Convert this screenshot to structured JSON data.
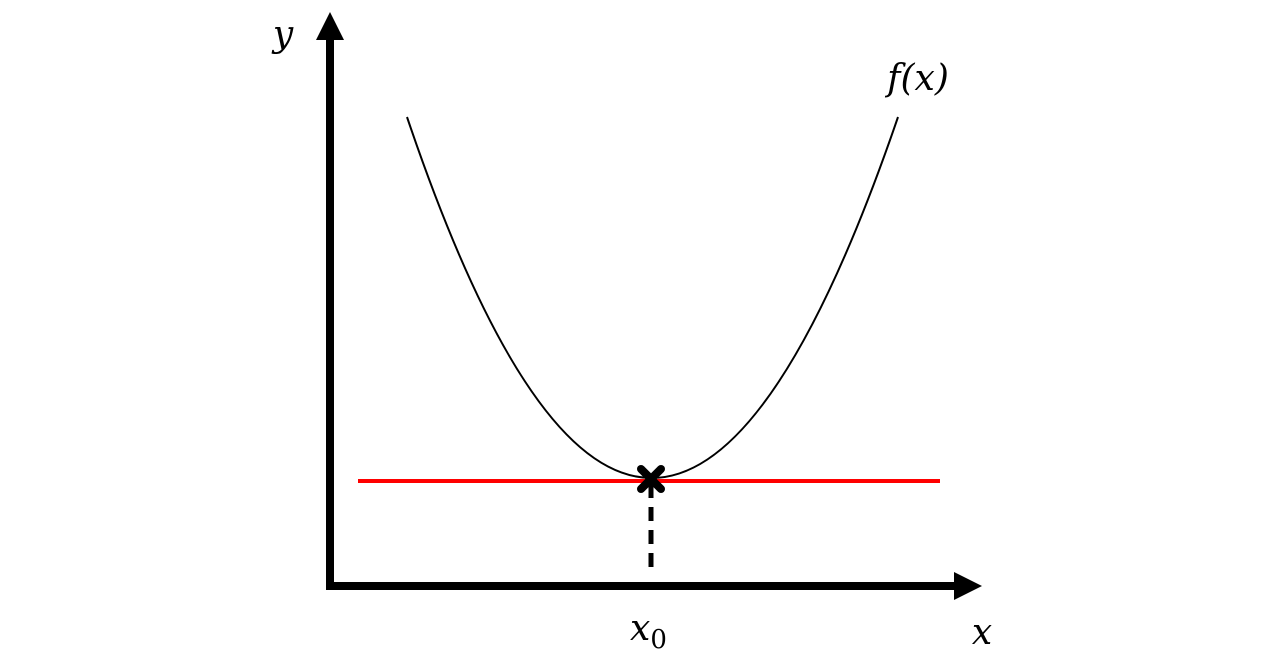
{
  "labels": {
    "y_axis": "y",
    "x_axis": "x",
    "curve": "f(x)",
    "point": {
      "base": "x",
      "subscript": "0"
    }
  }
}
